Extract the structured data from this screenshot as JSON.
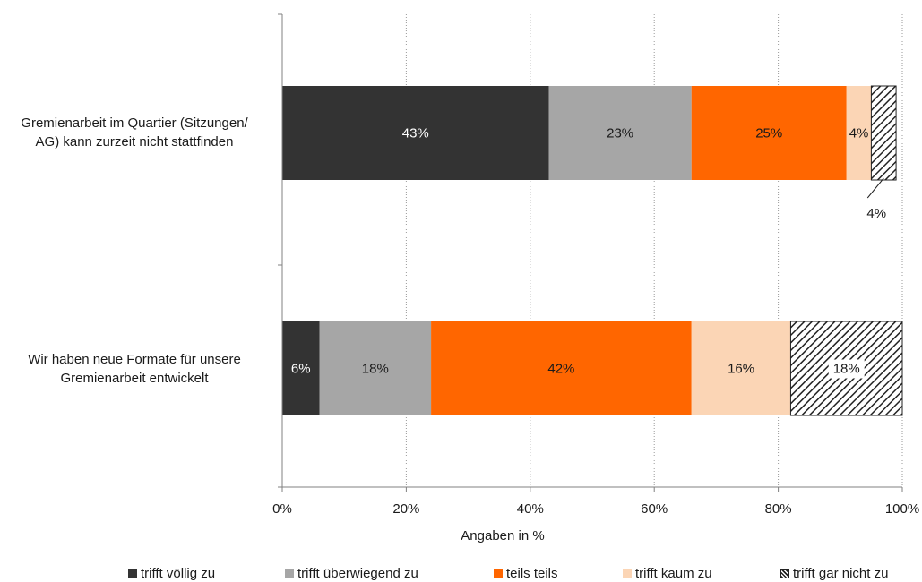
{
  "chart_data": {
    "type": "bar",
    "orientation": "horizontal",
    "stacked": true,
    "categories": [
      "Gremienarbeit im Quartier (Sitzungen/ AG) kann zurzeit nicht stattfinden",
      "Wir haben neue Formate für unsere Gremienarbeit entwickelt"
    ],
    "category_lines": [
      [
        "Gremienarbeit im Quartier (Sitzungen/",
        "AG) kann zurzeit nicht stattfinden"
      ],
      [
        "Wir haben neue Formate für unsere",
        "Gremienarbeit entwickelt"
      ]
    ],
    "series": [
      {
        "name": "trifft völlig zu",
        "values": [
          43,
          6
        ],
        "labels": [
          "43%",
          "6%"
        ],
        "color": "#333333",
        "pattern": "solid"
      },
      {
        "name": "trifft überwiegend zu",
        "values": [
          23,
          18
        ],
        "labels": [
          "23%",
          "18%"
        ],
        "color": "#a6a6a6",
        "pattern": "solid"
      },
      {
        "name": "teils teils",
        "values": [
          25,
          42
        ],
        "labels": [
          "25%",
          "42%"
        ],
        "color": "#ff6600",
        "pattern": "solid"
      },
      {
        "name": "trifft kaum zu",
        "values": [
          4,
          16
        ],
        "labels": [
          "4%",
          "16%"
        ],
        "color": "#fbd5b5",
        "pattern": "solid"
      },
      {
        "name": "trifft gar nicht zu",
        "values": [
          4,
          18
        ],
        "labels": [
          "4%",
          "18%"
        ],
        "color": "#333333",
        "pattern": "hatched"
      }
    ],
    "xlabel": "Angaben in %",
    "xlim": [
      0,
      100
    ],
    "xticks": [
      "0%",
      "20%",
      "40%",
      "60%",
      "80%",
      "100%"
    ],
    "grid": "vertical dotted",
    "legend_position": "bottom"
  }
}
